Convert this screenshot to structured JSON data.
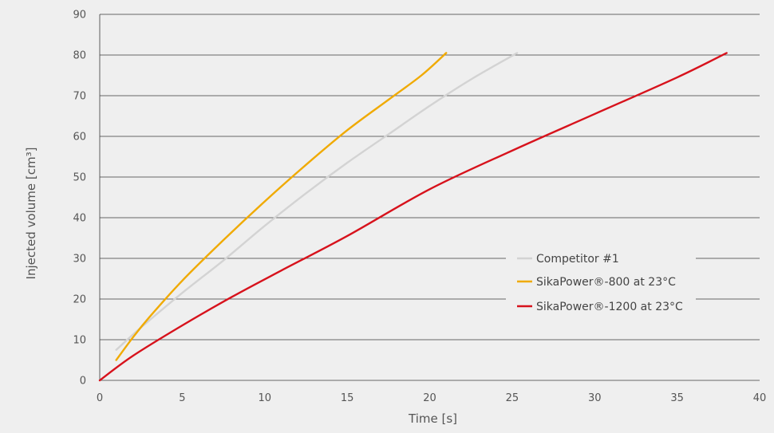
{
  "chart_data": {
    "type": "line",
    "title": "",
    "xlabel": "Time [s]",
    "ylabel": "Injected volume [cm³]",
    "xlim": [
      0,
      40
    ],
    "ylim": [
      0,
      90
    ],
    "xticks": [
      0,
      5,
      10,
      15,
      20,
      25,
      30,
      35,
      40
    ],
    "yticks": [
      0,
      10,
      20,
      30,
      40,
      50,
      60,
      70,
      80,
      90
    ],
    "grid": "horizontal",
    "legend_position": "right-middle",
    "series": [
      {
        "name": "Competitor #1",
        "color": "#d3d3d3",
        "points": [
          [
            1.0,
            7.5
          ],
          [
            2.5,
            13.0
          ],
          [
            5.0,
            21.5
          ],
          [
            7.5,
            29.5
          ],
          [
            10.0,
            38.0
          ],
          [
            12.5,
            46.0
          ],
          [
            15.0,
            53.5
          ],
          [
            17.5,
            60.5
          ],
          [
            20.0,
            67.5
          ],
          [
            22.5,
            74.0
          ],
          [
            25.3,
            80.5
          ]
        ]
      },
      {
        "name": "SikaPower®-800 at 23°C",
        "color": "#f0aa00",
        "points": [
          [
            1.0,
            5.0
          ],
          [
            2.0,
            10.5
          ],
          [
            3.0,
            15.5
          ],
          [
            5.0,
            24.5
          ],
          [
            7.5,
            34.5
          ],
          [
            10.0,
            44.0
          ],
          [
            12.5,
            53.0
          ],
          [
            15.0,
            61.5
          ],
          [
            17.5,
            69.0
          ],
          [
            19.5,
            75.0
          ],
          [
            21.0,
            80.5
          ]
        ]
      },
      {
        "name": "SikaPower®-1200 at 23°C",
        "color": "#d7121c",
        "points": [
          [
            0.0,
            0.0
          ],
          [
            2.0,
            6.0
          ],
          [
            5.0,
            13.5
          ],
          [
            8.0,
            20.5
          ],
          [
            11.0,
            27.0
          ],
          [
            15.0,
            35.5
          ],
          [
            20.0,
            47.0
          ],
          [
            25.0,
            56.5
          ],
          [
            30.0,
            65.5
          ],
          [
            35.0,
            74.5
          ],
          [
            38.0,
            80.5
          ]
        ]
      }
    ]
  }
}
